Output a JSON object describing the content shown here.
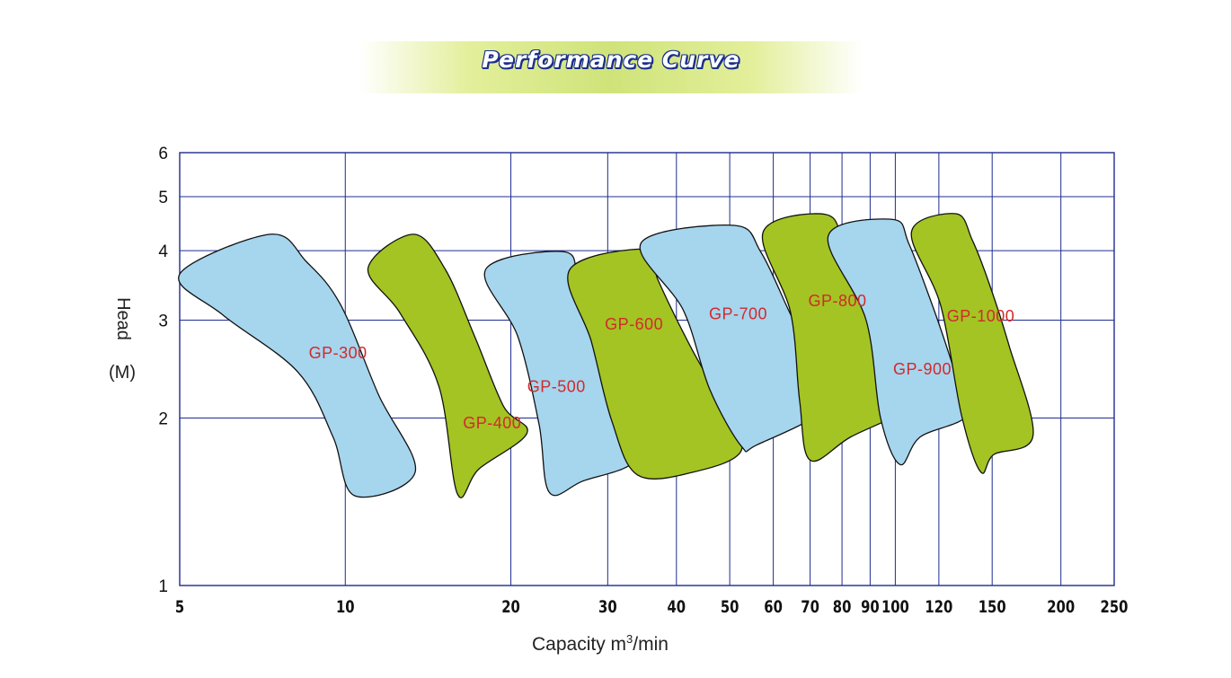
{
  "title": "Performance Curve",
  "colors": {
    "blue": "#a6d5ee",
    "green": "#a3c423",
    "grid": "#1f2c8e",
    "label": "#d22a2a"
  },
  "chart_data": {
    "type": "area",
    "title": "Performance Curve",
    "xlabel": "Capacity m³/min",
    "ylabel_line1": "Head",
    "ylabel_line2": "(M)",
    "xscale": "log",
    "yscale": "log",
    "xlim": [
      5,
      250
    ],
    "ylim": [
      1,
      6
    ],
    "xticks": [
      5,
      10,
      20,
      30,
      40,
      50,
      60,
      70,
      80,
      90,
      100,
      120,
      150,
      200,
      250
    ],
    "yticks": [
      1,
      2,
      3,
      4,
      5,
      6
    ],
    "grid": true,
    "series": [
      {
        "name": "GP-300",
        "color": "blue",
        "label_at": [
          9.7,
          2.62
        ],
        "region": [
          [
            5.0,
            3.63
          ],
          [
            7.3,
            4.28
          ],
          [
            8.5,
            3.82
          ],
          [
            9.8,
            3.2
          ],
          [
            11.5,
            2.2
          ],
          [
            13.4,
            1.6
          ],
          [
            10.4,
            1.45
          ],
          [
            9.5,
            1.85
          ],
          [
            8.2,
            2.42
          ],
          [
            6.0,
            3.06
          ]
        ]
      },
      {
        "name": "GP-400",
        "color": "green",
        "label_at": [
          18.5,
          1.96
        ],
        "region": [
          [
            11.0,
            3.72
          ],
          [
            13.3,
            4.28
          ],
          [
            15.2,
            3.7
          ],
          [
            17.2,
            2.8
          ],
          [
            19.4,
            2.1
          ],
          [
            21.4,
            1.88
          ],
          [
            17.5,
            1.62
          ],
          [
            16.0,
            1.46
          ],
          [
            14.8,
            2.28
          ],
          [
            12.6,
            3.08
          ]
        ]
      },
      {
        "name": "GP-500",
        "color": "blue",
        "label_at": [
          24.2,
          2.28
        ],
        "region": [
          [
            18.0,
            3.7
          ],
          [
            25.0,
            3.98
          ],
          [
            26.5,
            3.5
          ],
          [
            28.5,
            2.7
          ],
          [
            30.8,
            2.08
          ],
          [
            33.8,
            1.69
          ],
          [
            27.0,
            1.54
          ],
          [
            23.5,
            1.47
          ],
          [
            22.5,
            1.95
          ],
          [
            20.6,
            2.8
          ]
        ]
      },
      {
        "name": "GP-600",
        "color": "green",
        "label_at": [
          33.5,
          2.95
        ],
        "region": [
          [
            25.6,
            3.7
          ],
          [
            35.5,
            4.02
          ],
          [
            37.0,
            3.55
          ],
          [
            42.5,
            2.68
          ],
          [
            48.5,
            2.12
          ],
          [
            52.5,
            1.75
          ],
          [
            43.0,
            1.6
          ],
          [
            34.0,
            1.58
          ],
          [
            30.5,
            1.98
          ],
          [
            28.0,
            2.75
          ]
        ]
      },
      {
        "name": "GP-700",
        "color": "blue",
        "label_at": [
          51.8,
          3.08
        ],
        "region": [
          [
            34.5,
            4.13
          ],
          [
            51.0,
            4.44
          ],
          [
            57.0,
            3.97
          ],
          [
            64.0,
            3.12
          ],
          [
            70.0,
            2.6
          ],
          [
            76.0,
            2.12
          ],
          [
            56.0,
            1.79
          ],
          [
            52.5,
            1.78
          ],
          [
            46.0,
            2.25
          ],
          [
            41.2,
            3.12
          ]
        ]
      },
      {
        "name": "GP-800",
        "color": "green",
        "label_at": [
          78.5,
          3.25
        ],
        "region": [
          [
            57.5,
            4.32
          ],
          [
            74.5,
            4.65
          ],
          [
            81.0,
            4.1
          ],
          [
            91.5,
            3.05
          ],
          [
            101.0,
            2.4
          ],
          [
            108.0,
            2.12
          ],
          [
            83.0,
            1.85
          ],
          [
            70.0,
            1.68
          ],
          [
            67.0,
            2.15
          ],
          [
            64.5,
            3.1
          ]
        ]
      },
      {
        "name": "GP-900",
        "color": "blue",
        "label_at": [
          112.0,
          2.45
        ],
        "region": [
          [
            75.5,
            4.25
          ],
          [
            99.0,
            4.55
          ],
          [
            106.0,
            4.1
          ],
          [
            118.0,
            3.1
          ],
          [
            127.0,
            2.5
          ],
          [
            136.0,
            2.04
          ],
          [
            111.0,
            1.85
          ],
          [
            102.0,
            1.65
          ],
          [
            94.0,
            2.0
          ],
          [
            88.5,
            3.0
          ]
        ]
      },
      {
        "name": "GP-1000",
        "color": "green",
        "label_at": [
          143.0,
          3.05
        ],
        "region": [
          [
            107.0,
            4.32
          ],
          [
            129.0,
            4.66
          ],
          [
            138.0,
            4.18
          ],
          [
            148.0,
            3.5
          ],
          [
            161.0,
            2.7
          ],
          [
            178.0,
            1.86
          ],
          [
            151.0,
            1.72
          ],
          [
            143.0,
            1.6
          ],
          [
            132.0,
            2.02
          ],
          [
            121.0,
            3.18
          ]
        ]
      }
    ]
  }
}
